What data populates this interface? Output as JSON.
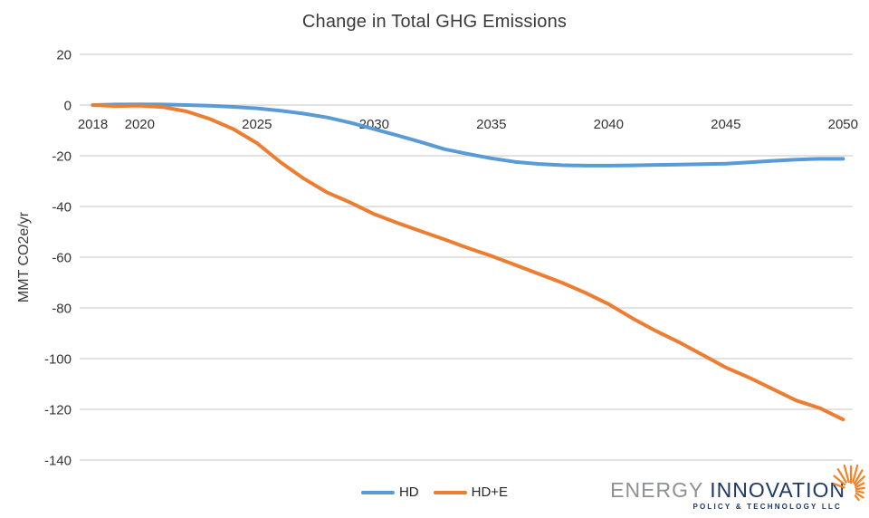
{
  "chart_data": {
    "type": "line",
    "title": "Change in Total GHG Emissions",
    "xlabel": "",
    "ylabel": "MMT CO2e/yr",
    "x": [
      2018,
      2019,
      2020,
      2021,
      2022,
      2023,
      2024,
      2025,
      2026,
      2027,
      2028,
      2029,
      2030,
      2031,
      2032,
      2033,
      2034,
      2035,
      2036,
      2037,
      2038,
      2039,
      2040,
      2041,
      2042,
      2043,
      2044,
      2045,
      2046,
      2047,
      2048,
      2049,
      2050
    ],
    "series": [
      {
        "name": "HD",
        "color": "#5B9BD5",
        "values": [
          0,
          0.2,
          0.3,
          0.2,
          0,
          -0.3,
          -0.7,
          -1.3,
          -2.2,
          -3.4,
          -4.9,
          -7.0,
          -9.5,
          -12.0,
          -14.6,
          -17.4,
          -19.3,
          -21.0,
          -22.4,
          -23.2,
          -23.7,
          -23.9,
          -23.9,
          -23.8,
          -23.6,
          -23.5,
          -23.3,
          -23.1,
          -22.6,
          -22.0,
          -21.5,
          -21.2,
          -21.2
        ]
      },
      {
        "name": "HD+E",
        "color": "#ED7D31",
        "values": [
          0,
          -0.4,
          -0.2,
          -0.8,
          -2.5,
          -5.5,
          -9.5,
          -15.0,
          -22.5,
          -29.0,
          -34.5,
          -38.5,
          -43.0,
          -46.5,
          -49.8,
          -53.0,
          -56.4,
          -59.5,
          -63.0,
          -66.5,
          -70.0,
          -74.0,
          -78.5,
          -84.0,
          -89.0,
          -93.5,
          -98.5,
          -103.5,
          -107.5,
          -112.0,
          -116.5,
          -119.5,
          -124.0
        ]
      }
    ],
    "xlim": [
      2018,
      2050
    ],
    "ylim": [
      -140,
      20
    ],
    "y_ticks": [
      20,
      0,
      -20,
      -40,
      -60,
      -80,
      -100,
      -120,
      -140
    ],
    "x_ticks": [
      2018,
      2020,
      2025,
      2030,
      2035,
      2040,
      2045,
      2050
    ],
    "grid": true,
    "legend_position": "bottom"
  },
  "colors": {
    "gridline": "#D9D9D9",
    "tick_text": "#333333",
    "title_text": "#3a3a3a",
    "logo_gray": "#8e9093",
    "logo_navy": "#1f3864",
    "logo_orange": "#F58220"
  },
  "logo": {
    "energy": "ENERGY",
    "innovation": "INNOVATION",
    "tagline": "POLICY & TECHNOLOGY LLC"
  }
}
